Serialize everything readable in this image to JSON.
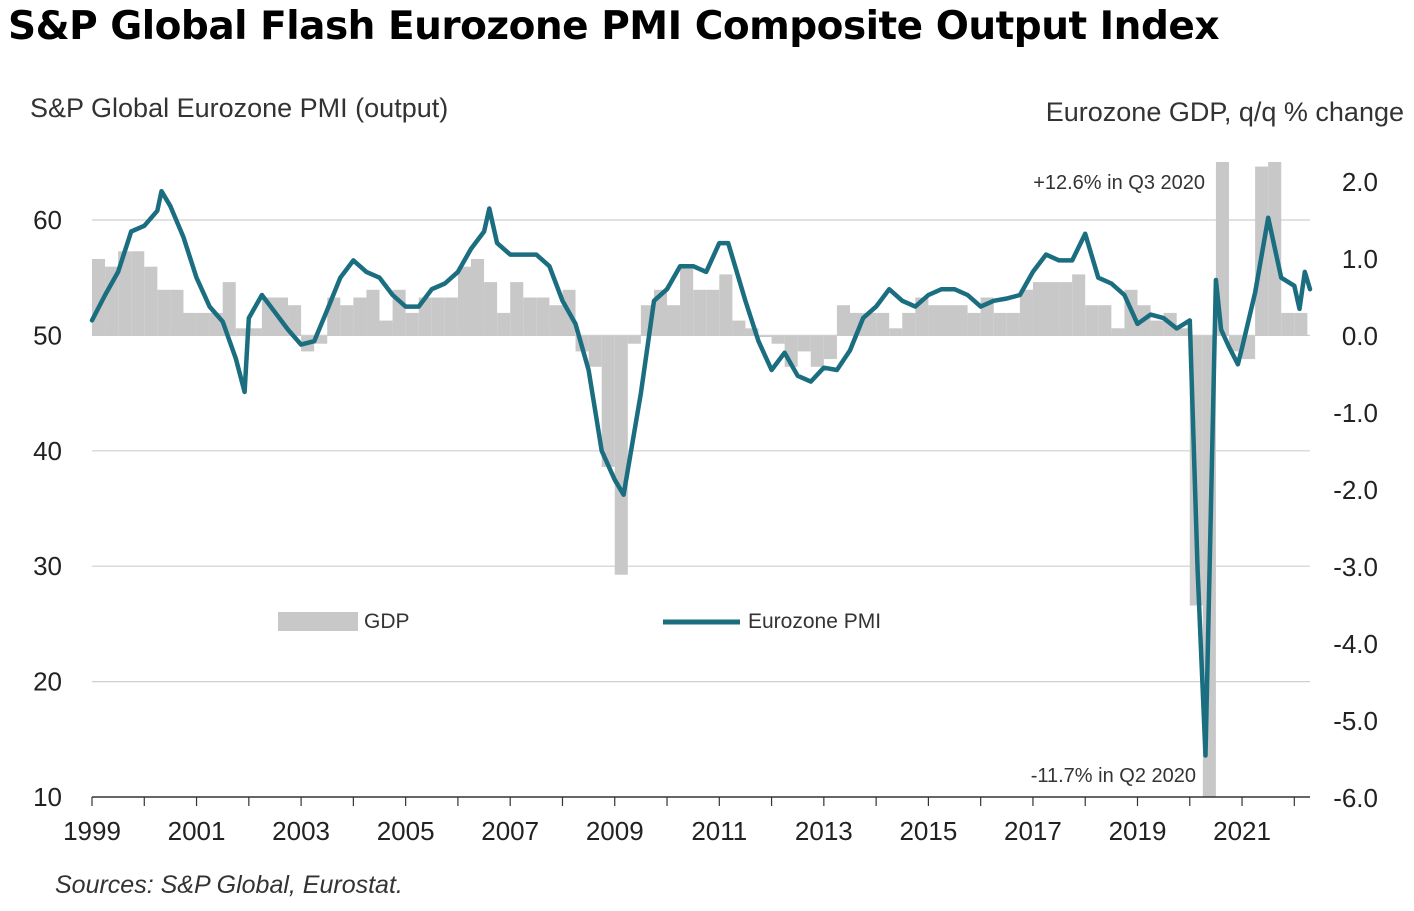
{
  "title": "S&P Global Flash Eurozone PMI Composite Output Index",
  "source": "Sources: S&P Global, Eurostat.",
  "colors": {
    "pmi_line": "#1A6E80",
    "gdp_bar": "#C8C8C8",
    "grid": "#CFCFCF",
    "axis": "#333333"
  },
  "chart_data": {
    "type": "bar+line",
    "left_axis": {
      "label": "S&P Global  Eurozone PMI (output)",
      "ylim": [
        10,
        65
      ],
      "ticks": [
        10,
        20,
        30,
        40,
        50,
        60
      ]
    },
    "right_axis": {
      "label": "Eurozone  GDP, q/q % change",
      "ylim": [
        -6.0,
        2.3
      ],
      "ticks": [
        "2.0",
        "1.0",
        "0.0",
        "-1.0",
        "-2.0",
        "-3.0",
        "-4.0",
        "-5.0",
        "-6.0"
      ]
    },
    "x_axis": {
      "tick_labels": [
        "1999",
        "2001",
        "2003",
        "2005",
        "2007",
        "2009",
        "2011",
        "2013",
        "2015",
        "2017",
        "2019",
        "2021"
      ],
      "xlim": [
        1999.0,
        2022.3
      ]
    },
    "legend": [
      {
        "name": "GDP",
        "kind": "bar"
      },
      {
        "name": "Eurozone PMI",
        "kind": "line"
      }
    ],
    "annotations": [
      {
        "text": "+12.6% in Q3 2020",
        "x": 2020.6,
        "y": 2.0,
        "axis": "right"
      },
      {
        "text": "-11.7% in Q2 2020",
        "x": 2020.3,
        "y": -5.6,
        "axis": "right"
      }
    ],
    "gdp_series": {
      "name": "GDP",
      "x": [
        1999.0,
        1999.25,
        1999.5,
        1999.75,
        2000.0,
        2000.25,
        2000.5,
        2000.75,
        2001.0,
        2001.25,
        2001.5,
        2001.75,
        2002.0,
        2002.25,
        2002.5,
        2002.75,
        2003.0,
        2003.25,
        2003.5,
        2003.75,
        2004.0,
        2004.25,
        2004.5,
        2004.75,
        2005.0,
        2005.25,
        2005.5,
        2005.75,
        2006.0,
        2006.25,
        2006.5,
        2006.75,
        2007.0,
        2007.25,
        2007.5,
        2007.75,
        2008.0,
        2008.25,
        2008.5,
        2008.75,
        2009.0,
        2009.25,
        2009.5,
        2009.75,
        2010.0,
        2010.25,
        2010.5,
        2010.75,
        2011.0,
        2011.25,
        2011.5,
        2011.75,
        2012.0,
        2012.25,
        2012.5,
        2012.75,
        2013.0,
        2013.25,
        2013.5,
        2013.75,
        2014.0,
        2014.25,
        2014.5,
        2014.75,
        2015.0,
        2015.25,
        2015.5,
        2015.75,
        2016.0,
        2016.25,
        2016.5,
        2016.75,
        2017.0,
        2017.25,
        2017.5,
        2017.75,
        2018.0,
        2018.25,
        2018.5,
        2018.75,
        2019.0,
        2019.25,
        2019.5,
        2019.75,
        2020.0,
        2020.25,
        2020.5,
        2020.75,
        2021.0,
        2021.25,
        2021.5,
        2021.75,
        2022.0
      ],
      "values": [
        1.0,
        0.9,
        1.1,
        1.1,
        0.9,
        0.6,
        0.6,
        0.3,
        0.3,
        0.3,
        0.7,
        0.1,
        0.1,
        0.5,
        0.5,
        0.4,
        -0.2,
        -0.1,
        0.5,
        0.4,
        0.5,
        0.6,
        0.2,
        0.6,
        0.3,
        0.5,
        0.5,
        0.5,
        0.9,
        1.0,
        0.7,
        0.3,
        0.7,
        0.5,
        0.5,
        0.4,
        0.6,
        -0.2,
        -0.4,
        -1.7,
        -3.1,
        -0.1,
        0.4,
        0.6,
        0.4,
        0.9,
        0.6,
        0.6,
        0.8,
        0.2,
        0.1,
        0.0,
        -0.1,
        -0.4,
        -0.2,
        -0.4,
        -0.3,
        0.4,
        0.3,
        0.3,
        0.3,
        0.1,
        0.3,
        0.5,
        0.4,
        0.4,
        0.4,
        0.3,
        0.5,
        0.3,
        0.3,
        0.6,
        0.7,
        0.7,
        0.7,
        0.8,
        0.4,
        0.4,
        0.1,
        0.6,
        0.4,
        0.2,
        0.3,
        0.1,
        -3.5,
        -11.7,
        12.6,
        -0.2,
        -0.3,
        2.2,
        2.3,
        0.3,
        0.3
      ]
    },
    "pmi_series": {
      "name": "Eurozone PMI",
      "x": [
        1999.0,
        1999.25,
        1999.5,
        1999.75,
        2000.0,
        2000.25,
        2000.33,
        2000.5,
        2000.75,
        2001.0,
        2001.25,
        2001.5,
        2001.75,
        2001.92,
        2002.0,
        2002.25,
        2002.5,
        2002.75,
        2003.0,
        2003.25,
        2003.5,
        2003.75,
        2004.0,
        2004.25,
        2004.5,
        2004.75,
        2005.0,
        2005.25,
        2005.5,
        2005.75,
        2006.0,
        2006.25,
        2006.5,
        2006.6,
        2006.75,
        2007.0,
        2007.25,
        2007.5,
        2007.75,
        2008.0,
        2008.25,
        2008.5,
        2008.75,
        2009.0,
        2009.17,
        2009.5,
        2009.75,
        2010.0,
        2010.25,
        2010.5,
        2010.75,
        2011.0,
        2011.17,
        2011.5,
        2011.75,
        2012.0,
        2012.25,
        2012.5,
        2012.75,
        2013.0,
        2013.25,
        2013.5,
        2013.75,
        2014.0,
        2014.25,
        2014.5,
        2014.75,
        2015.0,
        2015.25,
        2015.5,
        2015.75,
        2016.0,
        2016.25,
        2016.5,
        2016.75,
        2017.0,
        2017.25,
        2017.5,
        2017.75,
        2018.0,
        2018.25,
        2018.5,
        2018.75,
        2019.0,
        2019.25,
        2019.5,
        2019.75,
        2020.0,
        2020.15,
        2020.3,
        2020.5,
        2020.6,
        2020.75,
        2020.92,
        2021.0,
        2021.25,
        2021.5,
        2021.75,
        2022.0,
        2022.1,
        2022.2,
        2022.3
      ],
      "values": [
        51.3,
        53.5,
        55.5,
        59.0,
        59.5,
        60.8,
        62.5,
        61.2,
        58.5,
        55.0,
        52.5,
        51.2,
        48.0,
        45.1,
        51.5,
        53.5,
        52.0,
        50.5,
        49.2,
        49.5,
        52.2,
        55.0,
        56.5,
        55.5,
        55.0,
        53.5,
        52.5,
        52.5,
        54.0,
        54.5,
        55.5,
        57.5,
        59.0,
        61.0,
        58.0,
        57.0,
        57.0,
        57.0,
        56.0,
        53.0,
        51.0,
        47.0,
        40.0,
        37.5,
        36.2,
        45.0,
        53.0,
        54.0,
        56.0,
        56.0,
        55.5,
        58.0,
        58.0,
        53.0,
        49.5,
        47.0,
        48.5,
        46.5,
        46.0,
        47.2,
        47.0,
        48.7,
        51.5,
        52.5,
        54.0,
        53.0,
        52.5,
        53.5,
        54.0,
        54.0,
        53.5,
        52.5,
        53.0,
        53.2,
        53.5,
        55.5,
        57.0,
        56.5,
        56.5,
        58.8,
        55.0,
        54.5,
        53.5,
        51.0,
        51.8,
        51.5,
        50.6,
        51.3,
        29.7,
        13.6,
        54.8,
        50.5,
        49.0,
        47.5,
        48.9,
        53.7,
        60.2,
        55.0,
        54.3,
        52.3,
        55.5,
        54.0
      ]
    }
  }
}
